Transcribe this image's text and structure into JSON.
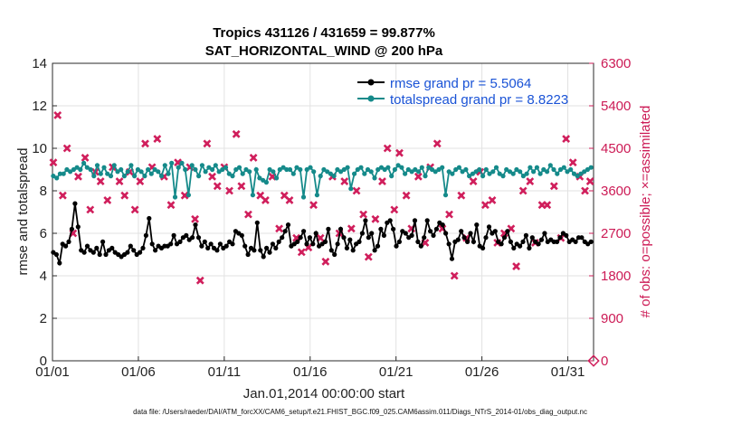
{
  "chart_data": {
    "type": "line",
    "title_line1": "Tropics 431126 / 431659 = 99.877%",
    "title_line2": "SAT_HORIZONTAL_WIND @ 200 hPa",
    "xlabel": "Jan.01,2014 00:00:00 start",
    "ylabel": "rmse and totalspread",
    "y2label": "# of obs: o=possible; ×=assimilated",
    "xlim": [
      1,
      32.5
    ],
    "ylim": [
      0,
      14
    ],
    "y2lim": [
      0,
      6300
    ],
    "x_ticks": [
      1,
      6,
      11,
      16,
      21,
      26,
      31
    ],
    "x_tick_labels": [
      "01/01",
      "01/06",
      "01/11",
      "01/16",
      "01/21",
      "01/26",
      "01/31"
    ],
    "y_ticks": [
      0,
      2,
      4,
      6,
      8,
      10,
      12,
      14
    ],
    "y_tick_labels": [
      "0",
      "2",
      "4",
      "6",
      "8",
      "10",
      "12",
      "14"
    ],
    "y2_ticks": [
      0,
      900,
      1800,
      2700,
      3600,
      4500,
      5400,
      6300
    ],
    "y2_tick_labels": [
      "0",
      "900",
      "1800",
      "2700",
      "3600",
      "4500",
      "5400",
      "6300"
    ],
    "grid": true,
    "legend_position": "top-right",
    "series": [
      {
        "name": "rmse grand pr = 5.5064",
        "color": "#000000",
        "marker": "dot",
        "axis": "left",
        "values": [
          5.1,
          5.0,
          4.6,
          5.5,
          5.4,
          5.6,
          6.2,
          7.4,
          6.3,
          5.2,
          5.1,
          5.4,
          5.2,
          5.1,
          5.3,
          5.0,
          5.6,
          5.0,
          5.2,
          5.3,
          5.1,
          5.0,
          4.9,
          5.0,
          5.1,
          5.4,
          5.2,
          5.0,
          5.1,
          5.3,
          5.9,
          6.7,
          5.5,
          5.2,
          5.4,
          5.3,
          5.4,
          5.4,
          5.5,
          5.9,
          5.5,
          5.6,
          5.8,
          5.9,
          5.7,
          5.8,
          6.4,
          5.8,
          5.4,
          5.6,
          5.3,
          5.5,
          5.3,
          5.2,
          5.5,
          5.3,
          5.4,
          5.6,
          5.5,
          6.1,
          6.0,
          5.9,
          5.4,
          5.0,
          5.3,
          5.2,
          6.5,
          5.2,
          4.9,
          5.3,
          5.1,
          5.5,
          5.3,
          5.6,
          5.8,
          6.1,
          6.4,
          5.4,
          5.5,
          5.6,
          5.8,
          6.1,
          5.5,
          5.8,
          5.5,
          6.0,
          5.4,
          5.5,
          5.6,
          6.2,
          5.2,
          5.0,
          5.5,
          6.2,
          5.8,
          5.3,
          5.7,
          5.2,
          5.5,
          5.6,
          6.0,
          6.6,
          5.8,
          6.0,
          5.2,
          5.4,
          6.2,
          5.9,
          6.5,
          6.6,
          6.2,
          5.4,
          5.6,
          6.1,
          6.0,
          5.8,
          5.9,
          6.6,
          5.6,
          5.4,
          5.8,
          6.6,
          6.1,
          5.9,
          6.2,
          6.5,
          6.4,
          6.0,
          5.5,
          4.8,
          5.6,
          5.7,
          6.1,
          5.8,
          5.6,
          6.0,
          5.6,
          6.4,
          5.4,
          5.3,
          5.8,
          6.3,
          6.0,
          6.1,
          5.6,
          5.5,
          5.8,
          6.1,
          5.6,
          5.3,
          5.5,
          5.4,
          5.6,
          5.9,
          5.3,
          5.8,
          5.6,
          5.5,
          5.7,
          6.0,
          5.6,
          5.7,
          5.6,
          5.6,
          5.8,
          6.0,
          5.9,
          5.6,
          5.7,
          5.6,
          5.8,
          5.8,
          5.6,
          5.5,
          5.6
        ]
      },
      {
        "name": "totalspread grand pr = 8.8223",
        "color": "#158a8a",
        "marker": "dot",
        "axis": "left",
        "values": [
          8.7,
          8.6,
          8.8,
          8.8,
          9.0,
          8.9,
          9.0,
          9.1,
          9.0,
          9.3,
          9.1,
          9.0,
          8.7,
          9.2,
          8.8,
          9.1,
          8.8,
          8.7,
          9.2,
          8.9,
          9.0,
          8.7,
          8.9,
          9.2,
          8.7,
          9.0,
          8.9,
          8.7,
          9.0,
          8.8,
          9.0,
          8.9,
          8.7,
          9.2,
          8.8,
          9.3,
          7.7,
          9.1,
          9.3,
          9.0,
          7.8,
          9.2,
          9.0,
          8.7,
          9.2,
          8.9,
          9.1,
          9.0,
          9.2,
          8.9,
          9.0,
          9.1,
          8.8,
          8.7,
          9.0,
          9.1,
          8.8,
          9.0,
          8.9,
          7.8,
          9.0,
          8.6,
          8.5,
          8.4,
          9.0,
          8.9,
          8.6,
          9.0,
          9.1,
          9.0,
          9.0,
          8.8,
          9.1,
          9.0,
          7.7,
          9.0,
          9.1,
          8.9,
          7.8,
          8.7,
          9.0,
          8.9,
          8.8,
          8.7,
          9.0,
          8.9,
          9.0,
          9.1,
          8.1,
          8.8,
          9.0,
          9.1,
          8.8,
          9.0,
          8.9,
          8.6,
          9.0,
          9.1,
          9.0,
          9.1,
          8.7,
          9.0,
          9.2,
          9.1,
          8.8,
          9.0,
          8.9,
          9.0,
          8.9,
          9.1,
          8.7,
          9.1,
          9.0,
          8.9,
          9.0,
          9.1,
          7.8,
          8.9,
          8.8,
          9.0,
          9.1,
          8.9,
          9.0,
          8.7,
          8.8,
          8.9,
          9.0,
          8.7,
          9.0,
          8.8,
          8.9,
          9.1,
          8.8,
          8.7,
          9.0,
          8.9,
          8.8,
          9.0,
          8.9,
          8.7,
          8.8,
          9.1,
          8.9,
          9.1,
          8.8,
          9.0,
          8.9,
          9.2,
          9.0,
          8.8,
          9.0,
          9.1,
          8.9,
          9.0,
          8.8,
          8.7,
          8.8,
          8.9,
          9.0,
          9.1
        ]
      },
      {
        "name": "assimilated obs",
        "color": "#d01f5c",
        "marker": "x",
        "axis": "right",
        "x": [
          1.05,
          1.3,
          1.6,
          1.85,
          2.2,
          2.5,
          2.9,
          3.2,
          3.5,
          3.8,
          4.2,
          4.5,
          4.9,
          5.2,
          5.5,
          5.8,
          6.1,
          6.4,
          6.8,
          7.1,
          7.5,
          7.9,
          8.3,
          8.7,
          9.0,
          9.3,
          9.6,
          10.0,
          10.3,
          10.6,
          11.0,
          11.3,
          11.7,
          12.0,
          12.4,
          12.7,
          13.1,
          13.4,
          13.8,
          14.2,
          14.5,
          14.8,
          15.2,
          15.5,
          15.9,
          16.2,
          16.6,
          16.9,
          17.3,
          17.7,
          18.0,
          18.4,
          18.7,
          19.1,
          19.4,
          19.8,
          20.2,
          20.5,
          20.9,
          21.2,
          21.6,
          21.9,
          22.3,
          22.7,
          23.0,
          23.4,
          23.7,
          24.1,
          24.4,
          24.8,
          25.1,
          25.5,
          25.9,
          26.2,
          26.6,
          26.9,
          27.3,
          27.7,
          28.0,
          28.4,
          28.8,
          29.1,
          29.5,
          29.8,
          30.2,
          30.6,
          30.9,
          31.3,
          31.7,
          32.0,
          32.3
        ],
        "values": [
          4200,
          5200,
          3500,
          4500,
          2700,
          3900,
          4300,
          3200,
          4000,
          3800,
          3400,
          4100,
          3800,
          3500,
          4000,
          3200,
          3800,
          4600,
          4100,
          4700,
          3900,
          3300,
          4200,
          3500,
          4100,
          3000,
          1700,
          4600,
          3900,
          3700,
          4100,
          3600,
          4800,
          3700,
          3100,
          4300,
          3500,
          3400,
          3900,
          2800,
          3500,
          3400,
          2600,
          2300,
          2400,
          3300,
          2600,
          2100,
          3900,
          2700,
          3800,
          2800,
          3600,
          3100,
          2200,
          3000,
          3800,
          4500,
          3200,
          4400,
          3500,
          2800,
          3900,
          2500,
          4100,
          4600,
          2800,
          3100,
          1800,
          3500,
          2600,
          3800,
          4000,
          3300,
          3400,
          2500,
          2700,
          2800,
          2000,
          3600,
          3800,
          2500,
          3300,
          3300,
          3700,
          2600,
          4700,
          4200,
          3900,
          3600,
          3800
        ]
      }
    ]
  },
  "footnote": "data file: /Users/raeder/DAI/ATM_forcXX/CAM6_setup/f.e21.FHIST_BGC.f09_025.CAM6assim.011/Diags_NTrS_2014-01/obs_diag_output.nc"
}
